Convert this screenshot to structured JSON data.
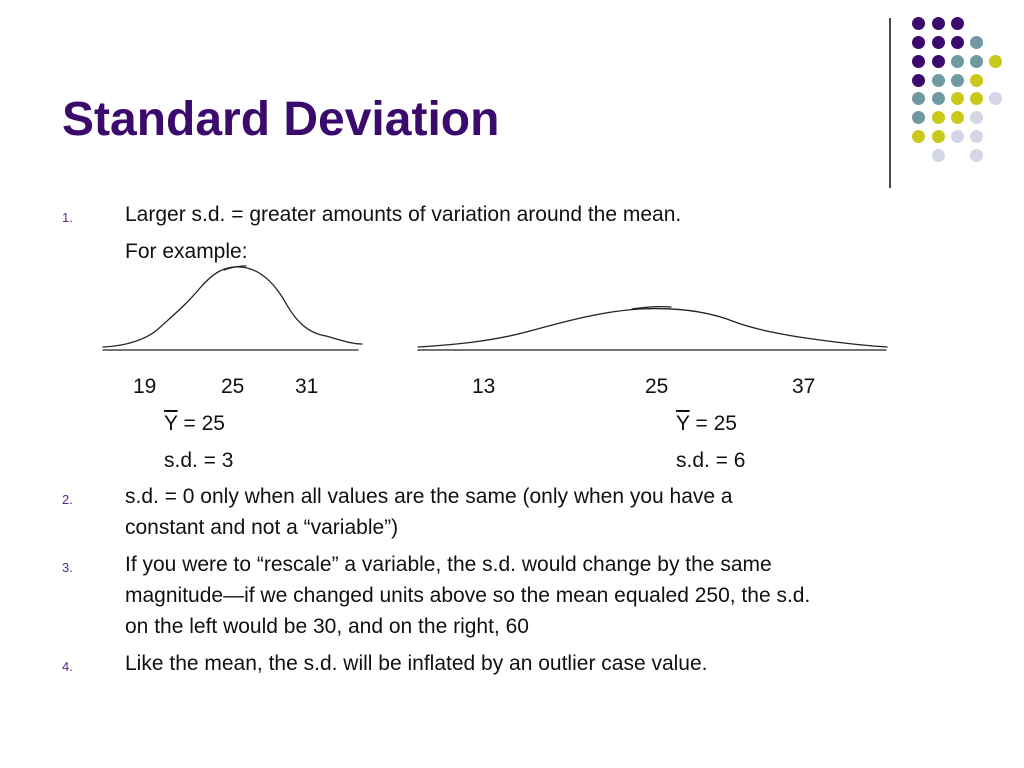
{
  "slide": {
    "title": "Standard Deviation",
    "colors": {
      "title": "#3b0a6d",
      "purple": "#3b0a6d",
      "teal": "#6f9aa0",
      "yellow": "#c9c91b",
      "lavender": "#d5d5e8"
    },
    "items": [
      {
        "number": "1.",
        "lines": [
          "Larger s.d. = greater amounts of variation around the mean.",
          "For example:"
        ]
      },
      {
        "number": "2.",
        "lines": [
          "s.d. = 0 only when all values are the same (only when you have a",
          "constant and not a “variable”)"
        ]
      },
      {
        "number": "3.",
        "lines": [
          "If you were to “rescale” a variable, the s.d. would change by the same",
          "magnitude—if we changed units above so the mean equaled 250, the s.d.",
          "on the left would be 30, and on the right, 60"
        ]
      },
      {
        "number": "4.",
        "lines": [
          "Like the mean, the s.d. will be inflated by an outlier case value."
        ]
      }
    ],
    "example": {
      "left": {
        "ticks": [
          "19",
          "25",
          "31"
        ],
        "mean_symbol": "Y",
        "mean_value": " = 25",
        "sd_text": "s.d. = 3"
      },
      "right": {
        "ticks": [
          "13",
          "25",
          "37"
        ],
        "mean_symbol": "Y",
        "mean_value": " = 25",
        "sd_text": "s.d. = 6"
      }
    }
  }
}
